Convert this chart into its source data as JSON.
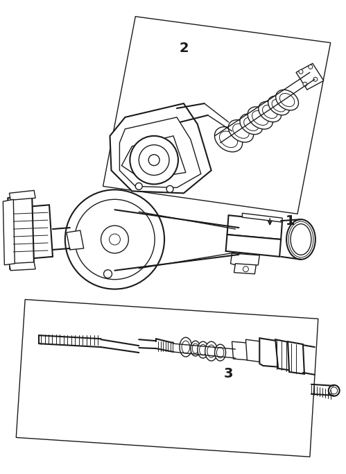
{
  "background_color": "#ffffff",
  "line_color": "#1a1a1a",
  "fig_width": 4.99,
  "fig_height": 6.83,
  "dpi": 100,
  "label_fontsize": 14,
  "label_fontweight": "bold"
}
